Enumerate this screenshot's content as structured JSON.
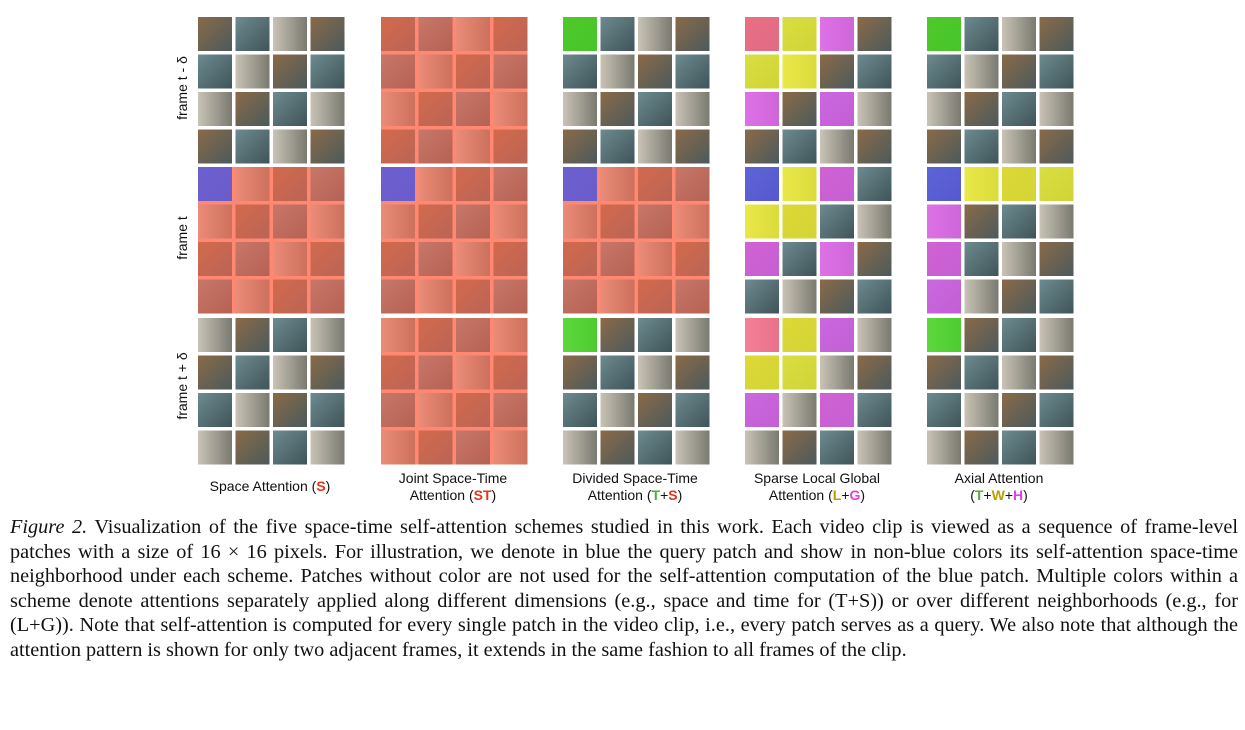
{
  "figure": {
    "row_labels": [
      "frame t - δ",
      "frame t",
      "frame t + δ"
    ],
    "schemes": [
      {
        "id": "S",
        "title_lines": [
          "Space Attention (",
          ""
        ],
        "title_html_parts": [
          {
            "line": 0,
            "parts": [
              {
                "t": "Space Attention (",
                "c": ""
              },
              {
                "t": "S",
                "c": "#e8321a"
              },
              {
                "t": ")",
                "c": ""
              }
            ]
          }
        ],
        "frames": [
          {
            "tint": "none",
            "cells": []
          },
          {
            "tint": "#ff6a50",
            "cells": [
              {
                "r": 0,
                "c": 0,
                "color": "#5a5ae6"
              }
            ]
          },
          {
            "tint": "none",
            "cells": []
          }
        ]
      },
      {
        "id": "ST",
        "title_html_parts": [
          {
            "line": 0,
            "parts": [
              {
                "t": "Joint Space-Time",
                "c": ""
              }
            ]
          },
          {
            "line": 1,
            "parts": [
              {
                "t": "Attention (",
                "c": ""
              },
              {
                "t": "ST",
                "c": "#e8321a"
              },
              {
                "t": ")",
                "c": ""
              }
            ]
          }
        ],
        "frames": [
          {
            "tint": "#ff6a50",
            "cells": []
          },
          {
            "tint": "#ff6a50",
            "cells": [
              {
                "r": 0,
                "c": 0,
                "color": "#5a5ae6"
              }
            ]
          },
          {
            "tint": "#ff6a50",
            "cells": []
          }
        ]
      },
      {
        "id": "T+S",
        "title_html_parts": [
          {
            "line": 0,
            "parts": [
              {
                "t": "Divided Space-Time",
                "c": ""
              }
            ]
          },
          {
            "line": 1,
            "parts": [
              {
                "t": "Attention (",
                "c": ""
              },
              {
                "t": "T",
                "c": "#4caf32"
              },
              {
                "t": "+",
                "c": ""
              },
              {
                "t": "S",
                "c": "#e8321a"
              },
              {
                "t": ")",
                "c": ""
              }
            ]
          }
        ],
        "frames": [
          {
            "tint": "none",
            "cells": [
              {
                "r": 0,
                "c": 0,
                "color": "#44dd22"
              }
            ]
          },
          {
            "tint": "#ff6a50",
            "cells": [
              {
                "r": 0,
                "c": 0,
                "color": "#5a5ae6"
              }
            ]
          },
          {
            "tint": "none",
            "cells": [
              {
                "r": 0,
                "c": 0,
                "color": "#44dd22"
              }
            ]
          }
        ]
      },
      {
        "id": "L+G",
        "title_html_parts": [
          {
            "line": 0,
            "parts": [
              {
                "t": "Sparse Local Global",
                "c": ""
              }
            ]
          },
          {
            "line": 1,
            "parts": [
              {
                "t": "Attention (",
                "c": ""
              },
              {
                "t": "L",
                "c": "#b8a000"
              },
              {
                "t": "+",
                "c": ""
              },
              {
                "t": "G",
                "c": "#e040e0"
              },
              {
                "t": ")",
                "c": ""
              }
            ]
          }
        ],
        "frames": [
          {
            "tint": "none",
            "cells": [
              {
                "r": 0,
                "c": 0,
                "color": "#ff7090"
              },
              {
                "r": 0,
                "c": 1,
                "color": "#f0f030"
              },
              {
                "r": 0,
                "c": 2,
                "color": "#e060f0"
              },
              {
                "r": 1,
                "c": 0,
                "color": "#f0f030"
              },
              {
                "r": 1,
                "c": 1,
                "color": "#f0f030"
              },
              {
                "r": 2,
                "c": 0,
                "color": "#e060f0"
              },
              {
                "r": 2,
                "c": 2,
                "color": "#e060f0"
              }
            ]
          },
          {
            "tint": "none",
            "cells": [
              {
                "r": 0,
                "c": 0,
                "color": "#5a5ae6"
              },
              {
                "r": 0,
                "c": 1,
                "color": "#f0f030"
              },
              {
                "r": 0,
                "c": 2,
                "color": "#e060f0"
              },
              {
                "r": 1,
                "c": 0,
                "color": "#f0f030"
              },
              {
                "r": 1,
                "c": 1,
                "color": "#f0f030"
              },
              {
                "r": 2,
                "c": 0,
                "color": "#e060f0"
              },
              {
                "r": 2,
                "c": 2,
                "color": "#e060f0"
              }
            ]
          },
          {
            "tint": "none",
            "cells": [
              {
                "r": 0,
                "c": 0,
                "color": "#ff7090"
              },
              {
                "r": 0,
                "c": 1,
                "color": "#f0f030"
              },
              {
                "r": 0,
                "c": 2,
                "color": "#e060f0"
              },
              {
                "r": 1,
                "c": 0,
                "color": "#f0f030"
              },
              {
                "r": 1,
                "c": 1,
                "color": "#f0f030"
              },
              {
                "r": 2,
                "c": 0,
                "color": "#e060f0"
              },
              {
                "r": 2,
                "c": 2,
                "color": "#e060f0"
              }
            ]
          }
        ]
      },
      {
        "id": "T+W+H",
        "title_html_parts": [
          {
            "line": 0,
            "parts": [
              {
                "t": "Axial Attention",
                "c": ""
              }
            ]
          },
          {
            "line": 1,
            "parts": [
              {
                "t": "(",
                "c": ""
              },
              {
                "t": "T",
                "c": "#4caf32"
              },
              {
                "t": "+",
                "c": ""
              },
              {
                "t": "W",
                "c": "#b8a000"
              },
              {
                "t": "+",
                "c": ""
              },
              {
                "t": "H",
                "c": "#e040e0"
              },
              {
                "t": ")",
                "c": ""
              }
            ]
          }
        ],
        "frames": [
          {
            "tint": "none",
            "cells": [
              {
                "r": 0,
                "c": 0,
                "color": "#44dd22"
              }
            ]
          },
          {
            "tint": "none",
            "cells": [
              {
                "r": 0,
                "c": 0,
                "color": "#5a5ae6"
              },
              {
                "r": 0,
                "c": 1,
                "color": "#f0f030"
              },
              {
                "r": 0,
                "c": 2,
                "color": "#f0f030"
              },
              {
                "r": 0,
                "c": 3,
                "color": "#f0f030"
              },
              {
                "r": 1,
                "c": 0,
                "color": "#e060f0"
              },
              {
                "r": 2,
                "c": 0,
                "color": "#e060f0"
              },
              {
                "r": 3,
                "c": 0,
                "color": "#e060f0"
              }
            ]
          },
          {
            "tint": "none",
            "cells": [
              {
                "r": 0,
                "c": 0,
                "color": "#44dd22"
              }
            ]
          }
        ]
      }
    ]
  },
  "caption": {
    "label": "Figure 2.",
    "text": " Visualization of the five space-time self-attention schemes studied in this work. Each video clip is viewed as a sequence of frame-level patches with a size of 16 × 16 pixels. For illustration, we denote in blue the query patch and show in non-blue colors its self-attention space-time neighborhood under each scheme. Patches without color are not used for the self-attention computation of the blue patch. Multiple colors within a scheme denote attentions separately applied along different dimensions (e.g., space and time for (T+S)) or over different neighborhoods (e.g., for (L+G)). Note that self-attention is computed for every single patch in the video clip, i.e., every patch serves as a query. We also note that although the attention pattern is shown for only two adjacent frames, it extends in the same fashion to all frames of the clip."
  }
}
